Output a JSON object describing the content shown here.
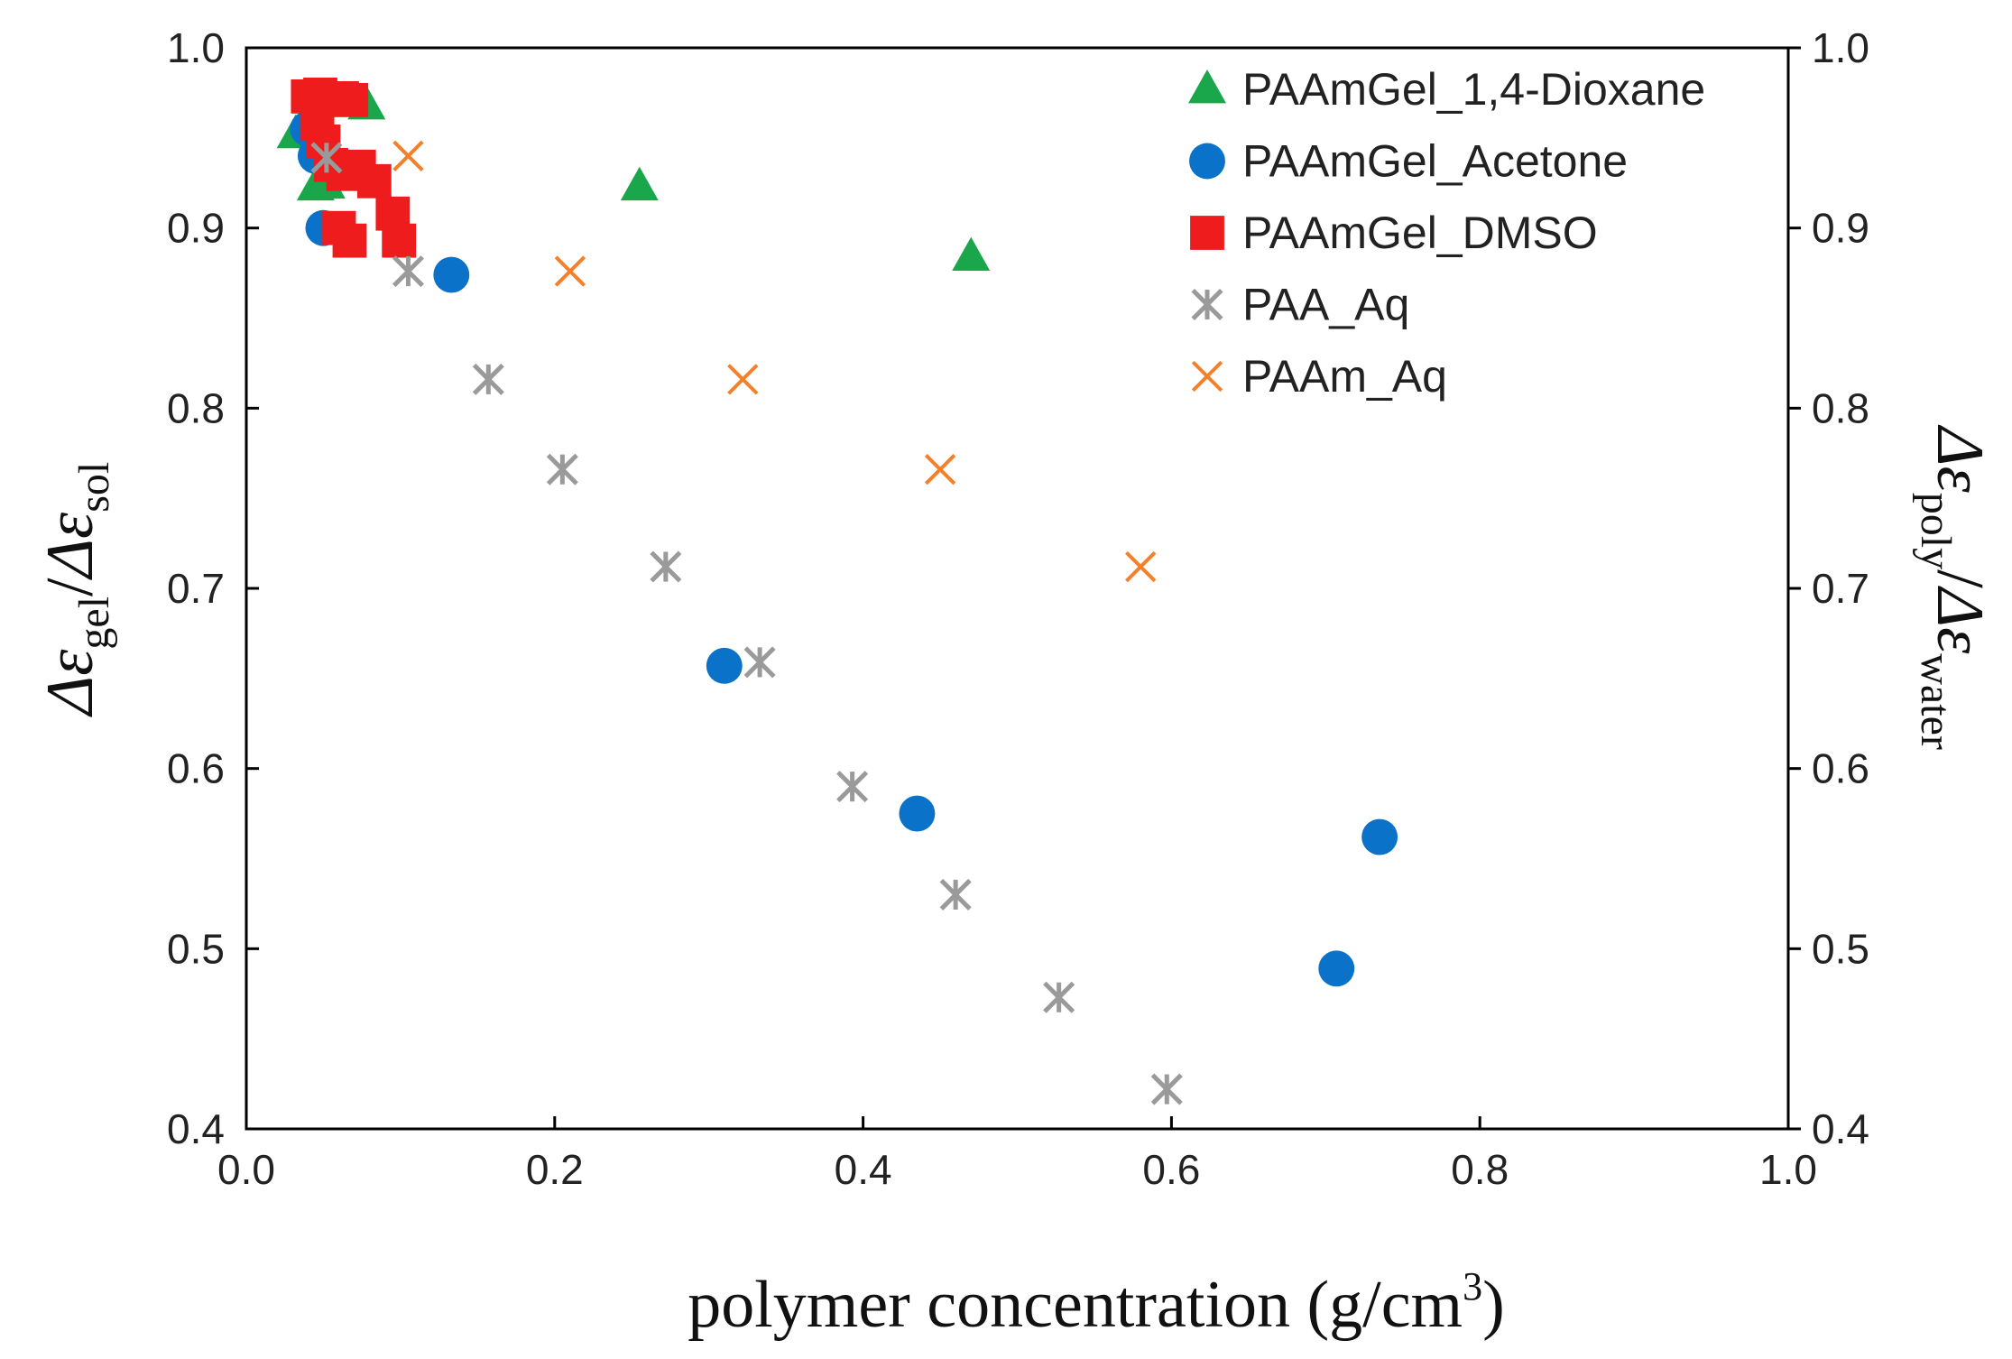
{
  "chart_data": {
    "type": "scatter",
    "xlabel": "polymer concentration (g/cm",
    "xlabel_sup": "3",
    "xlabel_end": ")",
    "ylabel_left": {
      "delta_a": "Δ",
      "eps_a": "ε",
      "sub_a": "gel",
      "slash": "/",
      "delta_b": "Δ",
      "eps_b": "ε",
      "sub_b": "sol"
    },
    "ylabel_right": {
      "delta_a": "Δ",
      "eps_a": "ε",
      "sub_a": "poly",
      "slash": "/",
      "delta_b": "Δ",
      "eps_b": "ε",
      "sub_b": "water"
    },
    "xlim": [
      0.0,
      1.0
    ],
    "ylim": [
      0.4,
      1.0
    ],
    "x_ticks": [
      "0.0",
      "0.2",
      "0.4",
      "0.6",
      "0.8",
      "1.0"
    ],
    "y_ticks": [
      "0.4",
      "0.5",
      "0.6",
      "0.7",
      "0.8",
      "0.9",
      "1.0"
    ],
    "grid": false,
    "legend_position": "top-right",
    "series": [
      {
        "name": "PAAmGel_1,4-Dioxane",
        "marker": "triangle",
        "color": "#1aa64a",
        "points": [
          [
            0.032,
            0.952
          ],
          [
            0.038,
            0.957
          ],
          [
            0.045,
            0.923
          ],
          [
            0.052,
            0.924
          ],
          [
            0.078,
            0.968
          ],
          [
            0.255,
            0.923
          ],
          [
            0.47,
            0.884
          ]
        ]
      },
      {
        "name": "PAAmGel_Acetone",
        "marker": "circle",
        "color": "#0a72c9",
        "points": [
          [
            0.04,
            0.955
          ],
          [
            0.045,
            0.94
          ],
          [
            0.05,
            0.9
          ],
          [
            0.133,
            0.874
          ],
          [
            0.31,
            0.657
          ],
          [
            0.435,
            0.575
          ],
          [
            0.707,
            0.489
          ],
          [
            0.735,
            0.562
          ]
        ]
      },
      {
        "name": "PAAmGel_DMSO",
        "marker": "square",
        "color": "#ee1c1c",
        "points": [
          [
            0.04,
            0.973
          ],
          [
            0.048,
            0.974
          ],
          [
            0.062,
            0.972
          ],
          [
            0.068,
            0.971
          ],
          [
            0.046,
            0.958
          ],
          [
            0.05,
            0.948
          ],
          [
            0.055,
            0.935
          ],
          [
            0.063,
            0.93
          ],
          [
            0.073,
            0.934
          ],
          [
            0.083,
            0.926
          ],
          [
            0.095,
            0.908
          ],
          [
            0.099,
            0.893
          ],
          [
            0.06,
            0.9
          ],
          [
            0.067,
            0.893
          ]
        ]
      },
      {
        "name": "PAA_Aq",
        "marker": "asterisk",
        "color": "#9a9a9a",
        "points": [
          [
            0.052,
            0.939
          ],
          [
            0.105,
            0.876
          ],
          [
            0.157,
            0.816
          ],
          [
            0.205,
            0.766
          ],
          [
            0.272,
            0.712
          ],
          [
            0.333,
            0.659
          ],
          [
            0.393,
            0.59
          ],
          [
            0.46,
            0.53
          ],
          [
            0.527,
            0.473
          ],
          [
            0.597,
            0.422
          ]
        ]
      },
      {
        "name": "PAAm_Aq",
        "marker": "x",
        "color": "#f5802a",
        "points": [
          [
            0.105,
            0.94
          ],
          [
            0.21,
            0.876
          ],
          [
            0.322,
            0.816
          ],
          [
            0.45,
            0.766
          ],
          [
            0.58,
            0.712
          ]
        ]
      }
    ]
  }
}
